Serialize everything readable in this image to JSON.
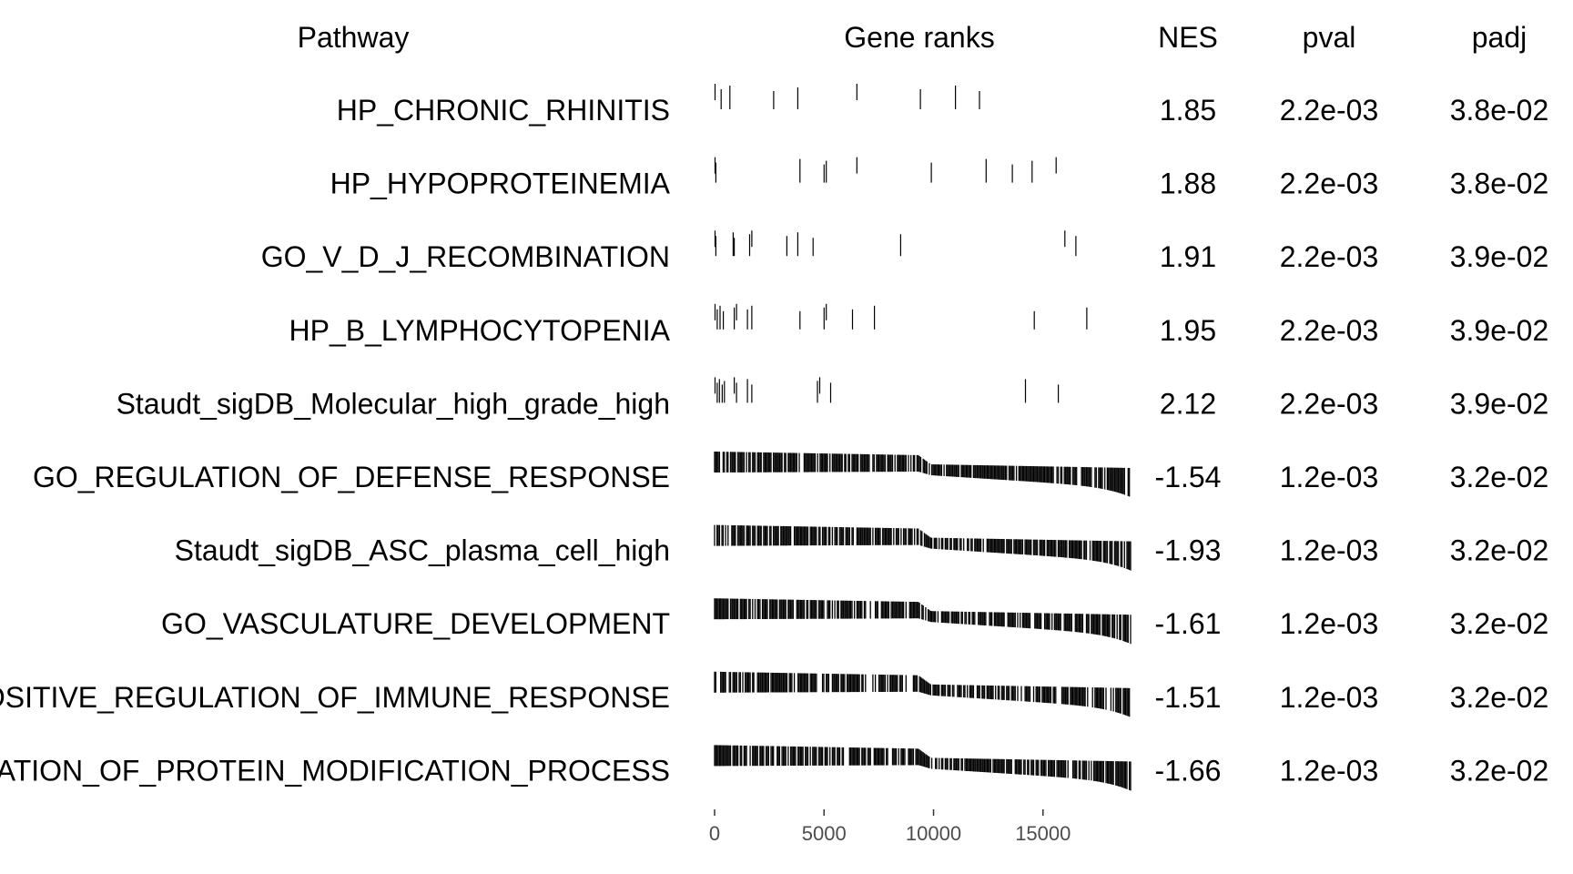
{
  "chart_data": {
    "type": "table",
    "columns": {
      "pathway": "Pathway",
      "gene_ranks": "Gene ranks",
      "nes": "NES",
      "pval": "pval",
      "padj": "padj"
    },
    "rank_axis": {
      "min": 0,
      "max": 19000,
      "ticks": [
        0,
        5000,
        10000,
        15000
      ],
      "tick_labels": [
        "0",
        "5000",
        "10000",
        "15000"
      ]
    },
    "rows": [
      {
        "pathway": "HP_CHRONIC_RHINITIS",
        "nes": "1.85",
        "pval": "2.2e-03",
        "padj": "3.8e-02",
        "hits": [
          20,
          300,
          700,
          2700,
          3800,
          6500,
          9400,
          11000,
          12100
        ]
      },
      {
        "pathway": "HP_HYPOPROTEINEMIA",
        "nes": "1.88",
        "pval": "2.2e-03",
        "padj": "3.8e-02",
        "hits": [
          20,
          60,
          3900,
          5000,
          5100,
          6500,
          9900,
          12400,
          13600,
          14500,
          15600
        ]
      },
      {
        "pathway": "GO_V_D_J_RECOMBINATION",
        "nes": "1.91",
        "pval": "2.2e-03",
        "padj": "3.9e-02",
        "hits": [
          20,
          60,
          850,
          900,
          1600,
          1700,
          3300,
          3800,
          4500,
          8500,
          16000,
          16500
        ]
      },
      {
        "pathway": "HP_B_LYMPHOCYTOPENIA",
        "nes": "1.95",
        "pval": "2.2e-03",
        "padj": "3.9e-02",
        "hits": [
          20,
          120,
          250,
          400,
          900,
          1000,
          1500,
          1700,
          3900,
          5000,
          5100,
          6300,
          7300,
          14600,
          17000
        ]
      },
      {
        "pathway": "Staudt_sigDB_Molecular_high_grade_high",
        "nes": "2.12",
        "pval": "2.2e-03",
        "padj": "3.9e-02",
        "hits": [
          20,
          120,
          220,
          350,
          450,
          900,
          1000,
          1500,
          1700,
          4700,
          4800,
          5300,
          14200,
          15700
        ]
      },
      {
        "pathway": "GO_REGULATION_OF_DEFENSE_RESPONSE",
        "nes": "-1.54",
        "pval": "1.2e-03",
        "padj": "3.2e-02"
      },
      {
        "pathway": "Staudt_sigDB_ASC_plasma_cell_high",
        "nes": "-1.93",
        "pval": "1.2e-03",
        "padj": "3.2e-02"
      },
      {
        "pathway": "GO_VASCULATURE_DEVELOPMENT",
        "nes": "-1.61",
        "pval": "1.2e-03",
        "padj": "3.2e-02"
      },
      {
        "pathway": "GO_POSITIVE_REGULATION_OF_IMMUNE_RESPONSE",
        "nes": "-1.51",
        "pval": "1.2e-03",
        "padj": "3.2e-02"
      },
      {
        "pathway": "GO_POSITIVE_REGULATION_OF_PROTEIN_MODIFICATION_PROCESS",
        "nes": "-1.66",
        "pval": "1.2e-03",
        "padj": "3.2e-02"
      }
    ]
  }
}
